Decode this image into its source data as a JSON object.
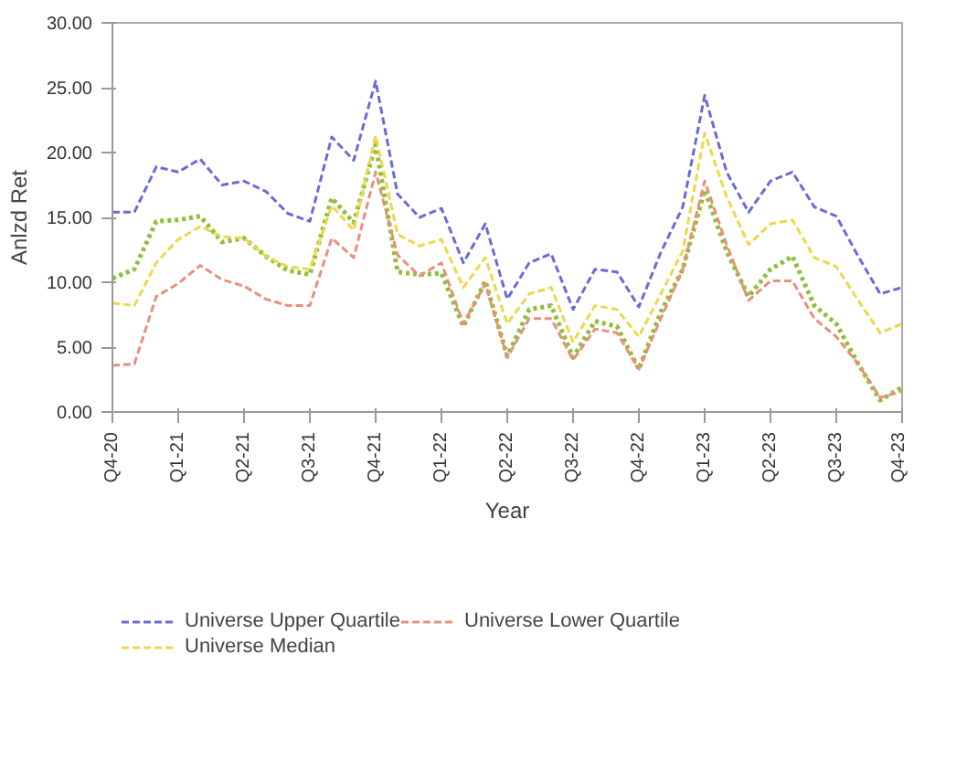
{
  "chart_data": {
    "type": "line",
    "xlabel": "Year",
    "ylabel": "Anlzd Ret",
    "categories": [
      "Q4-20",
      null,
      null,
      "Q1-21",
      null,
      null,
      "Q2-21",
      null,
      null,
      "Q3-21",
      null,
      null,
      "Q4-21",
      null,
      null,
      "Q1-22",
      null,
      null,
      "Q2-22",
      null,
      null,
      "Q3-22",
      null,
      null,
      "Q4-22",
      null,
      null,
      "Q1-23",
      null,
      null,
      "Q2-23",
      null,
      null,
      "Q3-23",
      null,
      null,
      "Q4-23"
    ],
    "ylim": [
      0,
      30
    ],
    "yticks": [
      {
        "value": 0,
        "label": "0.00"
      },
      {
        "value": 5,
        "label": "5.00"
      },
      {
        "value": 10,
        "label": "10.00"
      },
      {
        "value": 15,
        "label": "15.00"
      },
      {
        "value": 20,
        "label": "20.00"
      },
      {
        "value": 25,
        "label": "25.00"
      },
      {
        "value": 30,
        "label": "30.00"
      }
    ],
    "grid": false,
    "legend": "bottom",
    "series": [
      {
        "color": "#8fbf3a",
        "line_style": "dotted",
        "values": [
          10.3,
          11.0,
          14.7,
          14.8,
          15.1,
          13.1,
          13.4,
          12.0,
          10.9,
          10.6,
          16.5,
          14.6,
          20.6,
          10.8,
          10.6,
          10.7,
          6.6,
          10.1,
          4.3,
          7.9,
          8.2,
          4.2,
          7.0,
          6.6,
          3.3,
          7.7,
          11.0,
          17.1,
          12.4,
          8.9,
          11.0,
          12.0,
          8.2,
          6.8,
          3.7,
          0.9,
          1.9
        ]
      },
      {
        "name": "Universe Upper Quartile",
        "color": "#6b6bd6",
        "line_style": "dashed",
        "values": [
          15.4,
          15.4,
          18.9,
          18.5,
          19.5,
          17.5,
          17.8,
          17.0,
          15.3,
          14.7,
          21.2,
          19.4,
          25.5,
          16.8,
          15.0,
          15.7,
          11.5,
          14.5,
          8.7,
          11.5,
          12.2,
          7.9,
          11.0,
          10.8,
          8.1,
          12.3,
          15.8,
          24.4,
          18.5,
          15.4,
          17.8,
          18.5,
          15.8,
          15.1,
          12.0,
          9.1,
          9.6
        ]
      },
      {
        "name": "Universe Median",
        "color": "#ecd84a",
        "line_style": "dashed",
        "values": [
          8.4,
          8.2,
          11.5,
          13.3,
          14.3,
          13.5,
          13.4,
          12.0,
          11.2,
          11.0,
          15.9,
          14.0,
          21.3,
          13.7,
          12.8,
          13.3,
          9.6,
          11.9,
          6.8,
          9.1,
          9.6,
          5.4,
          8.2,
          7.9,
          5.8,
          9.1,
          12.4,
          21.5,
          16.6,
          12.9,
          14.5,
          14.8,
          11.9,
          11.2,
          8.6,
          6.1,
          6.8
        ]
      },
      {
        "name": "Universe Lower Quartile",
        "color": "#e8907a",
        "line_style": "dashed",
        "values": [
          3.6,
          3.7,
          8.9,
          9.9,
          11.3,
          10.2,
          9.7,
          8.7,
          8.2,
          8.2,
          13.4,
          11.9,
          18.5,
          12.1,
          10.5,
          11.5,
          6.8,
          9.9,
          4.2,
          7.2,
          7.2,
          4.0,
          6.4,
          6.1,
          3.3,
          7.2,
          11.0,
          17.8,
          12.9,
          8.6,
          10.1,
          10.1,
          7.2,
          5.8,
          3.7,
          1.1,
          1.6
        ]
      }
    ]
  }
}
